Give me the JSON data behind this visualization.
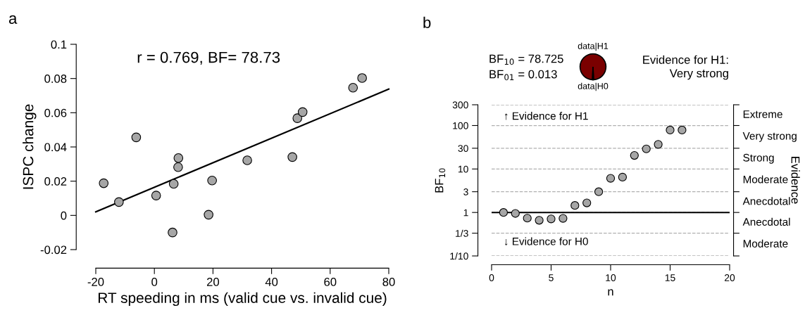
{
  "chart_data": [
    {
      "type": "scatter",
      "title": "a",
      "xlabel": "RT speeding in ms (valid cue vs. invalid cue)",
      "ylabel": "ISPC change",
      "series": [
        {
          "type": "scatter",
          "color": "#a6a6a6",
          "marker": "circle",
          "x": [
            -17.3,
            -12.1,
            -6.2,
            0.6,
            6.6,
            6.2,
            8.2,
            8.1,
            18.5,
            19.7,
            31.7,
            47.1,
            48.8,
            50.6,
            67.8,
            70.9
          ],
          "values": [
            0.0188,
            0.0078,
            0.0456,
            0.0116,
            0.0184,
            -0.01,
            0.0335,
            0.0282,
            0.0004,
            0.0204,
            0.0322,
            0.0341,
            0.0568,
            0.0604,
            0.0746,
            0.0803
          ]
        },
        {
          "type": "line",
          "color": "#000000",
          "x": [
            -20,
            80
          ],
          "values": [
            0.0021,
            0.0738
          ]
        }
      ],
      "xlim": [
        -20,
        80
      ],
      "xticks": [
        -20,
        0,
        20,
        40,
        60,
        80
      ],
      "ylim": [
        -0.02,
        0.1
      ],
      "yticks": [
        -0.02,
        0,
        0.02,
        0.04,
        0.06,
        0.08,
        0.1
      ],
      "annotations": [
        "r = 0.769, BF= 78.73"
      ],
      "grid": false,
      "legend": false
    },
    {
      "type": "scatter",
      "title": "b",
      "xlabel": "n",
      "ylabel": "BF$_{10}$",
      "y2label": "Evidence",
      "series": [
        {
          "type": "scatter",
          "color": "#a6a6a6",
          "marker": "circle",
          "x": [
            1,
            2,
            3,
            4,
            5,
            6,
            7,
            8,
            9,
            10,
            11,
            12,
            13,
            14,
            15,
            16
          ],
          "values": [
            1.0,
            0.95,
            0.74,
            0.66,
            0.71,
            0.73,
            1.45,
            1.66,
            3.0,
            6.1,
            6.5,
            20.5,
            29,
            36.8,
            78.7,
            78.7
          ]
        }
      ],
      "log": "y",
      "xlim": [
        0,
        20
      ],
      "xticks": [
        0,
        5,
        10,
        15,
        20
      ],
      "ylim": [
        0.1,
        300
      ],
      "yticks": [
        {
          "value": 0.1,
          "label": "1/10"
        },
        {
          "value": 0.3333,
          "label": "1/3"
        },
        1,
        3,
        10,
        30,
        100,
        300
      ],
      "grid": "y",
      "ref_lines": [
        {
          "axis": "y",
          "value": 1,
          "color": "#000000",
          "line_style": "solid"
        }
      ],
      "annotations": [
        "↑ Evidence for H1",
        "↓ Evidence for H0",
        "Extreme",
        "Very strong",
        "Strong",
        "Moderate",
        "Anecdotal",
        "Anecdotal",
        "Moderate"
      ],
      "legend": false
    },
    {
      "type": "pie",
      "categories": [
        "data|H1",
        "data|H0"
      ],
      "values": [
        98.7,
        1.3
      ],
      "colors": [
        "#7a0000",
        "#ffffff"
      ],
      "annotations": [
        "BF$_{10}$ = 78.725",
        "BF$_{01}$ = 0.013",
        "Evidence for H1:\nVery strong"
      ]
    }
  ]
}
